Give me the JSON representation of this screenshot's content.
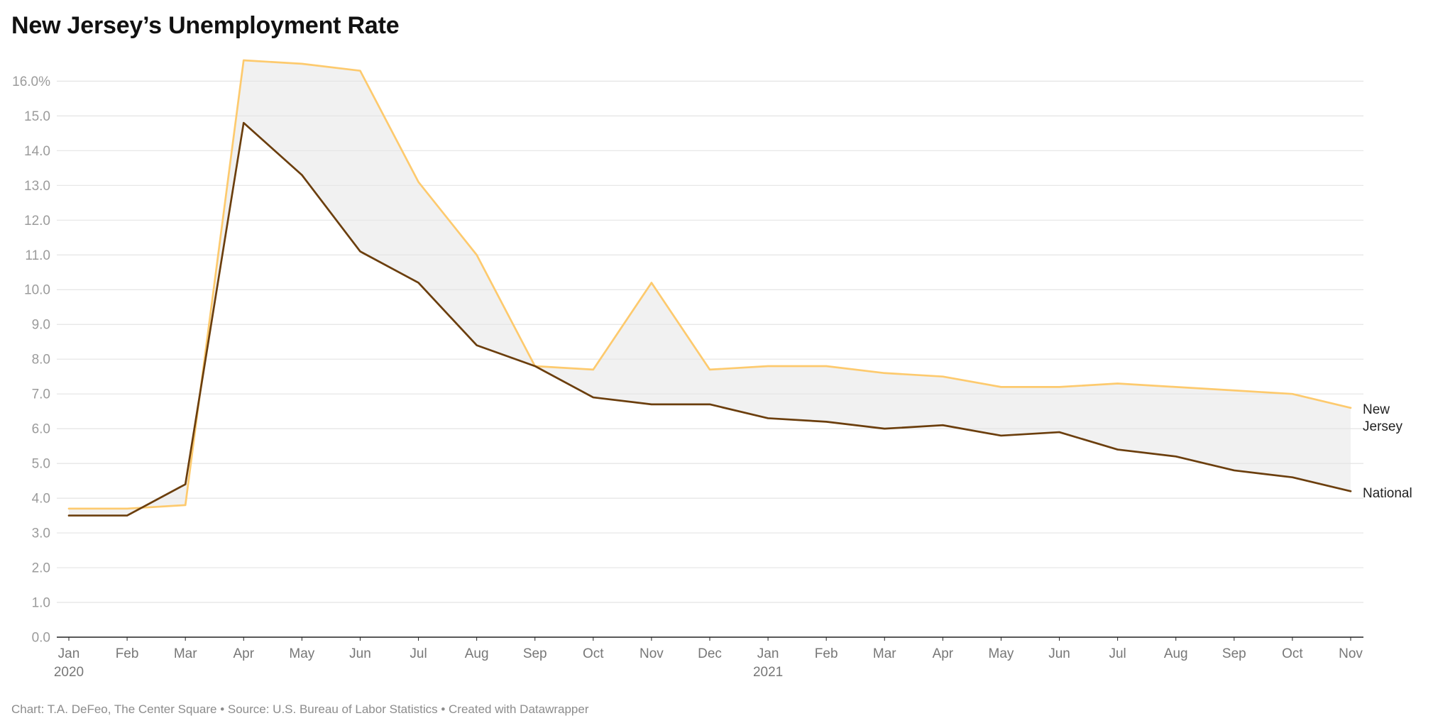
{
  "title": "New Jersey’s Unemployment Rate",
  "footer": "Chart: T.A. DeFeo, The Center Square • Source: U.S. Bureau of Labor Statistics • Created with Datawrapper",
  "colors": {
    "area_fill": "#efefef",
    "gridline": "#e4e4e4",
    "axis": "#222222"
  },
  "chart_data": {
    "type": "line",
    "title": "New Jersey’s Unemployment Rate",
    "categories": [
      "Jan",
      "Feb",
      "Mar",
      "Apr",
      "May",
      "Jun",
      "Jul",
      "Aug",
      "Sep",
      "Oct",
      "Nov",
      "Dec",
      "Jan",
      "Feb",
      "Mar",
      "Apr",
      "May",
      "Jun",
      "Jul",
      "Aug",
      "Sep",
      "Oct",
      "Nov"
    ],
    "category_years": [
      {
        "index": 0,
        "label": "2020"
      },
      {
        "index": 12,
        "label": "2021"
      }
    ],
    "y_ticks": [
      {
        "value": 0,
        "label": "0.0"
      },
      {
        "value": 1,
        "label": "1.0"
      },
      {
        "value": 2,
        "label": "2.0"
      },
      {
        "value": 3,
        "label": "3.0"
      },
      {
        "value": 4,
        "label": "4.0"
      },
      {
        "value": 5,
        "label": "5.0"
      },
      {
        "value": 6,
        "label": "6.0"
      },
      {
        "value": 7,
        "label": "7.0"
      },
      {
        "value": 8,
        "label": "8.0"
      },
      {
        "value": 9,
        "label": "9.0"
      },
      {
        "value": 10,
        "label": "10.0"
      },
      {
        "value": 11,
        "label": "11.0"
      },
      {
        "value": 12,
        "label": "12.0"
      },
      {
        "value": 13,
        "label": "13.0"
      },
      {
        "value": 14,
        "label": "14.0"
      },
      {
        "value": 15,
        "label": "15.0"
      },
      {
        "value": 16,
        "label": "16.0%"
      }
    ],
    "ylim": [
      0,
      16.6
    ],
    "fill_between": true,
    "series": [
      {
        "name": "New Jersey",
        "color": "#fdca6e",
        "values": [
          3.7,
          3.7,
          3.8,
          16.6,
          16.5,
          16.3,
          13.1,
          11.0,
          7.8,
          7.7,
          10.2,
          7.7,
          7.8,
          7.8,
          7.6,
          7.5,
          7.2,
          7.2,
          7.3,
          7.2,
          7.1,
          7.0,
          6.6
        ]
      },
      {
        "name": "National",
        "color": "#6b3e0d",
        "values": [
          3.5,
          3.5,
          4.4,
          14.8,
          13.3,
          11.1,
          10.2,
          8.4,
          7.8,
          6.9,
          6.7,
          6.7,
          6.3,
          6.2,
          6.0,
          6.1,
          5.8,
          5.9,
          5.4,
          5.2,
          4.8,
          4.6,
          4.2
        ]
      }
    ]
  }
}
